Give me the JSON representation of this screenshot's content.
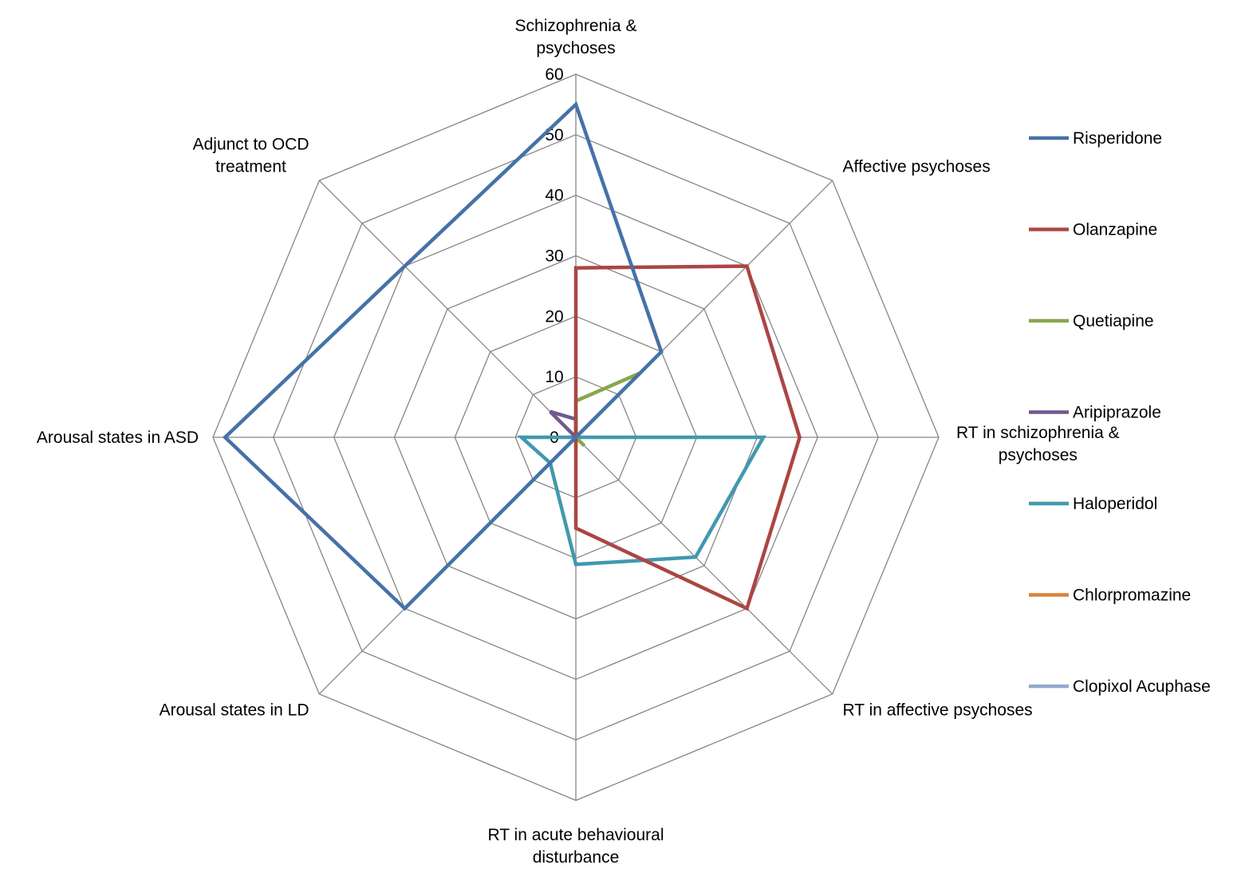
{
  "chart_data": {
    "type": "radar",
    "axes": [
      [
        "Schizophrenia &",
        "psychoses"
      ],
      [
        "Affective psychoses"
      ],
      [
        "RT in schizophrenia &",
        "psychoses"
      ],
      [
        "RT in affective psychoses"
      ],
      [
        "RT in acute behavioural",
        "disturbance"
      ],
      [
        "Arousal states in LD"
      ],
      [
        "Arousal states in ASD"
      ],
      [
        "Adjunct to OCD",
        "treatment"
      ]
    ],
    "rlim": [
      0,
      60
    ],
    "ticks": [
      0,
      10,
      20,
      30,
      40,
      50,
      60
    ],
    "grid": true,
    "legend_position": "right",
    "series": [
      {
        "name": "Risperidone",
        "color": "#4572A7",
        "values": [
          55,
          20,
          0,
          0,
          0,
          40,
          58,
          40
        ]
      },
      {
        "name": "Olanzapine",
        "color": "#AA4643",
        "values": [
          28,
          40,
          37,
          40,
          15,
          0,
          0,
          0
        ]
      },
      {
        "name": "Quetiapine",
        "color": "#89A54E",
        "values": [
          6,
          15,
          0,
          2,
          0,
          0,
          0,
          0
        ]
      },
      {
        "name": "Aripiprazole",
        "color": "#71588F",
        "values": [
          3,
          0,
          0,
          0,
          0,
          0,
          0,
          6
        ]
      },
      {
        "name": "Haloperidol",
        "color": "#4198AF",
        "values": [
          5,
          0,
          31,
          28,
          21,
          6,
          9,
          0
        ]
      },
      {
        "name": "Chlorpromazine",
        "color": "#DB843D",
        "values": [
          0,
          0,
          0,
          0,
          2,
          0,
          0,
          0
        ]
      },
      {
        "name": "Clopixol Acuphase",
        "color": "#93A9CF",
        "values": [
          0,
          0,
          0,
          0,
          0,
          0,
          0,
          0
        ]
      }
    ]
  }
}
